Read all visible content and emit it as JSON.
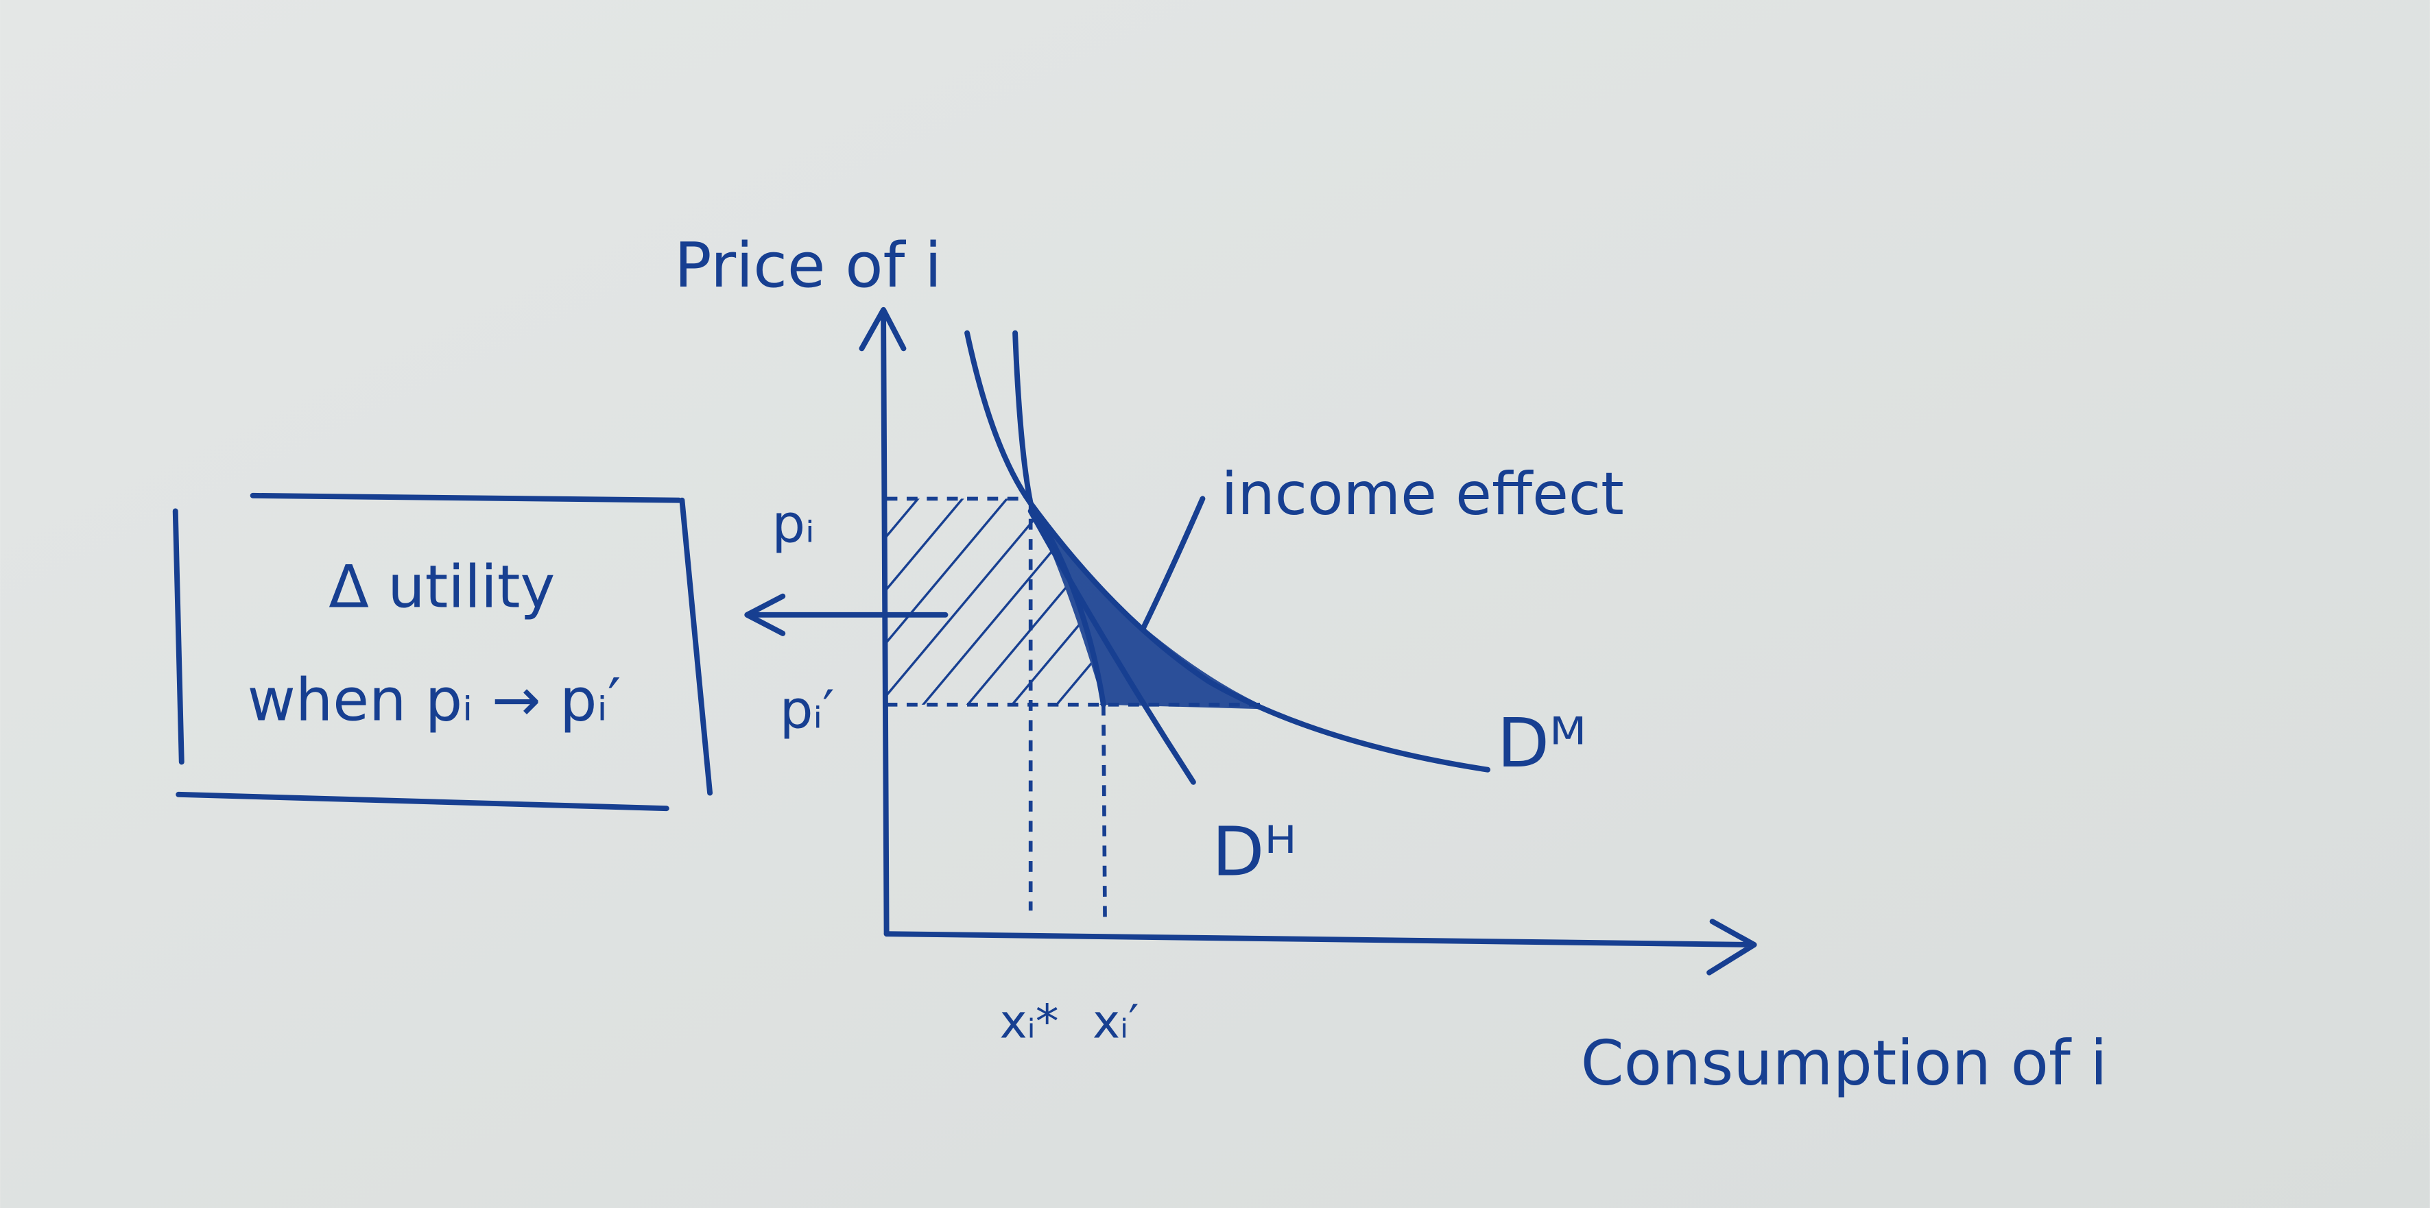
{
  "axes": {
    "y_label": "Price of i",
    "x_label": "Consumption of i"
  },
  "labels": {
    "p_old": "pᵢ",
    "p_new": "pᵢ′",
    "x_star": "xᵢ*",
    "x_new": "xᵢ′",
    "income_effect": "income effect",
    "demand_marshallian": "Dᴹ",
    "demand_hicksian": "Dᴴ"
  },
  "box": {
    "lines": [
      "Δ utility",
      "when pᵢ → pᵢ′"
    ]
  }
}
